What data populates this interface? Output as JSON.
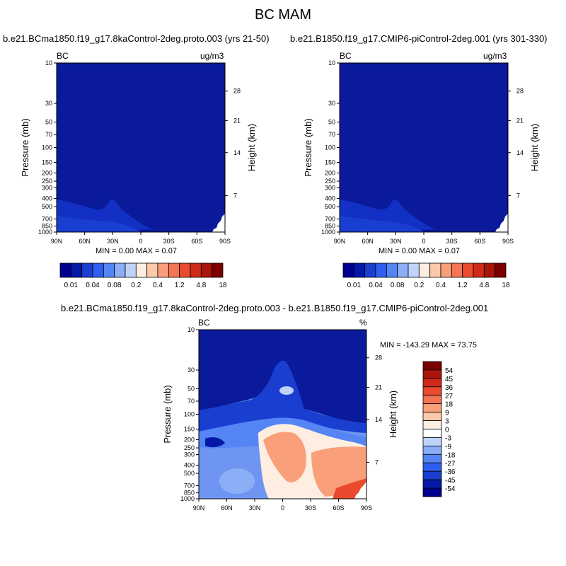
{
  "figure": {
    "title": "BC MAM"
  },
  "panel_titles": {
    "left": "b.e21.BCma1850.f19_g17.8kaControl-2deg.proto.003 (yrs 21-50)",
    "right": "b.e21.B1850.f19_g17.CMIP6-piControl-2deg.001 (yrs 301-330)",
    "diff": "b.e21.BCma1850.f19_g17.8kaControl-2deg.proto.003 - b.e21.B1850.f19_g17.CMIP6-piControl-2deg.001"
  },
  "panel_text": {
    "variable": "BC",
    "units_top": "ug/m3",
    "units_diff": "%",
    "minmax_left": "MIN =   0.00  MAX =   0.07",
    "minmax_right": "MIN =   0.00  MAX =   0.07",
    "minmax_diff": "MIN = -143.29  MAX =  73.75"
  },
  "colors": {
    "field_top": "#0a1a9a",
    "field_diff_top": "#0a1a9a"
  },
  "chart_data": [
    {
      "type": "heatmap",
      "title": "b.e21.BCma1850.f19_g17.8kaControl-2deg.proto.003 (yrs 21-50)",
      "xlabel": "",
      "ylabel": "Pressure (mb)",
      "ylabel_right": "Height (km)",
      "x_ticks": [
        "90N",
        "60N",
        "30N",
        "0",
        "30S",
        "60S",
        "90S"
      ],
      "y_ticks": [
        10,
        30,
        50,
        70,
        100,
        150,
        200,
        250,
        300,
        400,
        500,
        700,
        850,
        1000
      ],
      "y_scale": "log",
      "y_ticks_right": [
        28,
        21,
        14,
        7
      ],
      "ylim": [
        1000,
        10
      ],
      "min": 0.0,
      "max": 0.07,
      "units": "ug/m3"
    },
    {
      "type": "heatmap",
      "title": "b.e21.B1850.f19_g17.CMIP6-piControl-2deg.001 (yrs 301-330)",
      "xlabel": "",
      "ylabel": "Pressure (mb)",
      "ylabel_right": "Height (km)",
      "x_ticks": [
        "90N",
        "60N",
        "30N",
        "0",
        "30S",
        "60S",
        "90S"
      ],
      "y_ticks": [
        10,
        30,
        50,
        70,
        100,
        150,
        200,
        250,
        300,
        400,
        500,
        700,
        850,
        1000
      ],
      "y_scale": "log",
      "y_ticks_right": [
        28,
        21,
        14,
        7
      ],
      "ylim": [
        1000,
        10
      ],
      "min": 0.0,
      "max": 0.07,
      "units": "ug/m3"
    },
    {
      "type": "heatmap",
      "title": "b.e21.BCma1850.f19_g17.8kaControl-2deg.proto.003 - b.e21.B1850.f19_g17.CMIP6-piControl-2deg.001",
      "xlabel": "",
      "ylabel": "Pressure (mb)",
      "ylabel_right": "Height (km)",
      "x_ticks": [
        "90N",
        "60N",
        "30N",
        "0",
        "30S",
        "60S",
        "90S"
      ],
      "y_ticks": [
        10,
        30,
        50,
        70,
        100,
        150,
        200,
        250,
        300,
        400,
        500,
        700,
        850,
        1000
      ],
      "y_scale": "log",
      "y_ticks_right": [
        28,
        21,
        14,
        7
      ],
      "ylim": [
        1000,
        10
      ],
      "min": -143.29,
      "max": 73.75,
      "units": "%"
    }
  ],
  "colorbars": {
    "horizontal": {
      "labels": [
        "0.01",
        "0.04",
        "0.08",
        "0.2",
        "0.4",
        "1.2",
        "4.8",
        "18"
      ],
      "colors": [
        "#00008f",
        "#0519a8",
        "#1a3fd0",
        "#2e5ff0",
        "#5585f5",
        "#8aaff7",
        "#bfd3fa",
        "#fdeee1",
        "#fcc9a8",
        "#f9a07a",
        "#f47551",
        "#ea4a2e",
        "#cf2a18",
        "#a8150a",
        "#7a0000"
      ]
    },
    "vertical": {
      "labels": [
        "54",
        "45",
        "36",
        "27",
        "18",
        "9",
        "3",
        "0",
        "-3",
        "-9",
        "-18",
        "-27",
        "-36",
        "-45",
        "-54"
      ],
      "colors": [
        "#7a0000",
        "#a8150a",
        "#cf2a18",
        "#ea4a2e",
        "#f47551",
        "#f9a07a",
        "#fcc9a8",
        "#fdeee1",
        "#ffffff",
        "#bfd3fa",
        "#8aaff7",
        "#5585f5",
        "#2e5ff0",
        "#1a3fd0",
        "#0519a8",
        "#00008f"
      ]
    }
  }
}
